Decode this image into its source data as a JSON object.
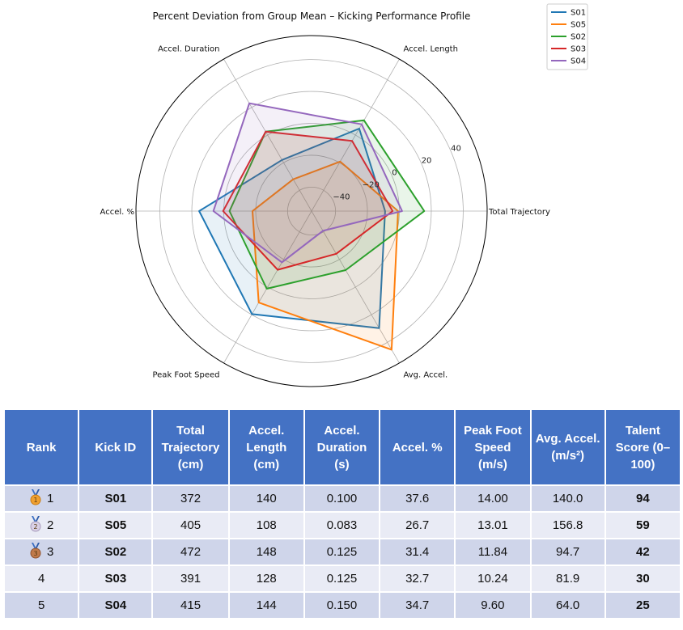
{
  "chart_data": {
    "type": "radar",
    "title": "Percent Deviation from Group Mean – Kicking Performance Profile",
    "axes": [
      "Total Trajectory",
      "Accel. Length",
      "Accel. Duration",
      "Accel. %",
      "Peak Foot Speed",
      "Avg. Accel."
    ],
    "rlim": [
      -55,
      55
    ],
    "rticks": [
      -40,
      -20,
      0,
      20,
      40
    ],
    "rtick_labels": [
      "−40",
      "−20",
      "0",
      "20",
      "40"
    ],
    "grid": true,
    "legend_position": "top-right",
    "series": [
      {
        "name": "S01",
        "color": "#1f77b4",
        "values": [
          -8.9,
          4.7,
          -18.0,
          15.4,
          19.6,
          29.7
        ]
      },
      {
        "name": "S05",
        "color": "#ff7f0e",
        "values": [
          -0.8,
          -19.2,
          -32.0,
          -18.0,
          11.2,
          45.3
        ]
      },
      {
        "name": "S02",
        "color": "#2ca02c",
        "values": [
          15.6,
          10.7,
          2.5,
          -3.6,
          1.2,
          -12.3
        ]
      },
      {
        "name": "S03",
        "color": "#d62728",
        "values": [
          -4.2,
          -4.2,
          2.5,
          0.4,
          -12.5,
          -24.1
        ]
      },
      {
        "name": "S04",
        "color": "#9467bd",
        "values": [
          1.7,
          7.8,
          23.0,
          6.5,
          -17.9,
          -40.7
        ]
      }
    ]
  },
  "table": {
    "headers": [
      "Rank",
      "Kick ID",
      "Total Trajectory (cm)",
      "Accel. Length (cm)",
      "Accel. Duration (s)",
      "Accel. %",
      "Peak Foot Speed (m/s)",
      "Avg. Accel. (m/s²)",
      "Talent Score (0–100)"
    ],
    "rows": [
      {
        "rank": "1",
        "medal": "gold",
        "kick_id": "S01",
        "total_trajectory": "372",
        "accel_length": "140",
        "accel_duration": "0.100",
        "accel_pct": "37.6",
        "peak_foot_speed": "14.00",
        "avg_accel": "140.0",
        "talent_score": "94"
      },
      {
        "rank": "2",
        "medal": "silver",
        "kick_id": "S05",
        "total_trajectory": "405",
        "accel_length": "108",
        "accel_duration": "0.083",
        "accel_pct": "26.7",
        "peak_foot_speed": "13.01",
        "avg_accel": "156.8",
        "talent_score": "59"
      },
      {
        "rank": "3",
        "medal": "bronze",
        "kick_id": "S02",
        "total_trajectory": "472",
        "accel_length": "148",
        "accel_duration": "0.125",
        "accel_pct": "31.4",
        "peak_foot_speed": "11.84",
        "avg_accel": "94.7",
        "talent_score": "42"
      },
      {
        "rank": "4",
        "medal": "",
        "kick_id": "S03",
        "total_trajectory": "391",
        "accel_length": "128",
        "accel_duration": "0.125",
        "accel_pct": "32.7",
        "peak_foot_speed": "10.24",
        "avg_accel": "81.9",
        "talent_score": "30"
      },
      {
        "rank": "5",
        "medal": "",
        "kick_id": "S04",
        "total_trajectory": "415",
        "accel_length": "144",
        "accel_duration": "0.150",
        "accel_pct": "34.7",
        "peak_foot_speed": "9.60",
        "avg_accel": "64.0",
        "talent_score": "25"
      }
    ]
  }
}
